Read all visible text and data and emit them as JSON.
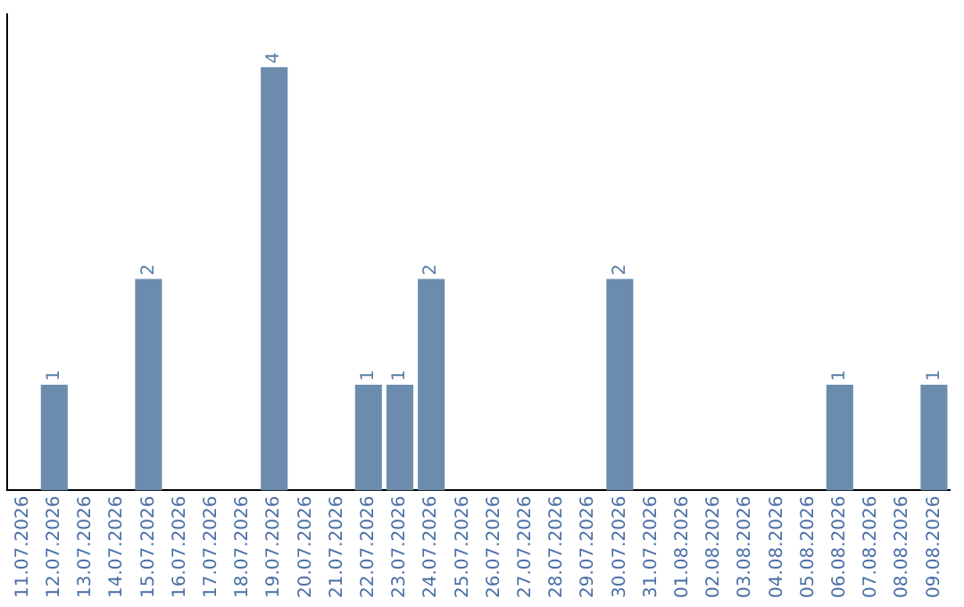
{
  "chart_data": {
    "type": "bar",
    "categories": [
      "11.07.2026",
      "12.07.2026",
      "13.07.2026",
      "14.07.2026",
      "15.07.2026",
      "16.07.2026",
      "17.07.2026",
      "18.07.2026",
      "19.07.2026",
      "20.07.2026",
      "21.07.2026",
      "22.07.2026",
      "23.07.2026",
      "24.07.2026",
      "25.07.2026",
      "26.07.2026",
      "27.07.2026",
      "28.07.2026",
      "29.07.2026",
      "30.07.2026",
      "31.07.2026",
      "01.08.2026",
      "02.08.2026",
      "03.08.2026",
      "04.08.2026",
      "05.08.2026",
      "06.08.2026",
      "07.08.2026",
      "08.08.2026",
      "09.08.2026"
    ],
    "values": [
      0,
      1,
      0,
      0,
      2,
      0,
      0,
      0,
      4,
      0,
      0,
      1,
      1,
      2,
      0,
      0,
      0,
      0,
      0,
      2,
      0,
      0,
      0,
      0,
      0,
      0,
      1,
      0,
      0,
      1
    ],
    "value_labels": [
      null,
      "1",
      null,
      null,
      "2",
      null,
      null,
      null,
      "4",
      null,
      null,
      "1",
      "1",
      "2",
      null,
      null,
      null,
      null,
      null,
      "2",
      null,
      null,
      null,
      null,
      null,
      null,
      "1",
      null,
      null,
      "1"
    ],
    "color": "#6b8cad",
    "tick_labels": "x",
    "grid": false,
    "legend": false
  }
}
